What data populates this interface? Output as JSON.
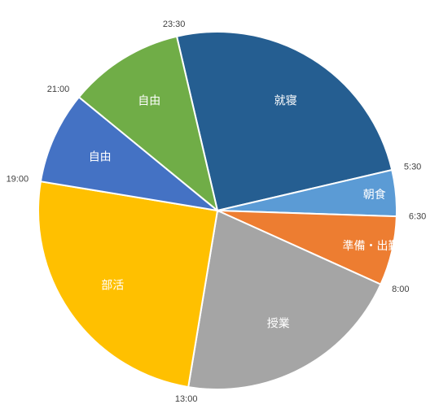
{
  "chart_data": {
    "type": "pie",
    "title": "",
    "start_time": "23:30",
    "slices": [
      {
        "label": "就寝",
        "start": "23:30",
        "end": "5:30",
        "hours": 6,
        "color": "#255e91"
      },
      {
        "label": "朝食",
        "start": "5:30",
        "end": "6:30",
        "hours": 1,
        "color": "#5b9bd5"
      },
      {
        "label": "準備・出勤",
        "start": "6:30",
        "end": "8:00",
        "hours": 1.5,
        "color": "#ed7d31"
      },
      {
        "label": "授業",
        "start": "8:00",
        "end": "13:00",
        "hours": 5,
        "color": "#a5a5a5"
      },
      {
        "label": "部活",
        "start": "13:00",
        "end": "19:00",
        "hours": 6,
        "color": "#ffc000"
      },
      {
        "label": "自由",
        "start": "19:00",
        "end": "21:00",
        "hours": 2,
        "color": "#4472c4"
      },
      {
        "label": "自由",
        "start": "21:00",
        "end": "23:30",
        "hours": 2.5,
        "color": "#70ad47"
      }
    ]
  }
}
